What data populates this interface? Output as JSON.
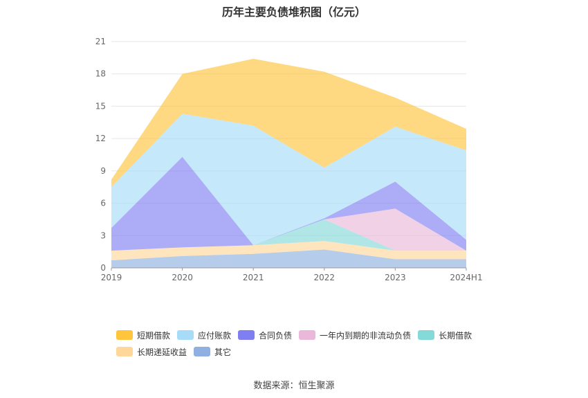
{
  "chart_data": {
    "type": "area",
    "stacked": true,
    "title": "历年主要负债堆积图（亿元）",
    "categories": [
      "2019",
      "2020",
      "2021",
      "2022",
      "2023",
      "2024H1"
    ],
    "ylim": [
      0,
      21
    ],
    "yticks": [
      0,
      3,
      6,
      9,
      12,
      15,
      18,
      21
    ],
    "grid": true,
    "legend_position": "bottom",
    "series": [
      {
        "name": "其它",
        "color": "#8fb0e0",
        "values": [
          0.7,
          1.1,
          1.3,
          1.7,
          0.8,
          0.8
        ]
      },
      {
        "name": "长期递延收益",
        "color": "#ffd79b",
        "values": [
          0.9,
          0.8,
          0.8,
          0.8,
          0.8,
          0.8
        ]
      },
      {
        "name": "长期借款",
        "color": "#85d9d9",
        "values": [
          0.0,
          0.0,
          0.0,
          2.0,
          0.0,
          0.0
        ]
      },
      {
        "name": "一年内到期的非流动负债",
        "color": "#eab8d8",
        "values": [
          0.0,
          0.0,
          0.0,
          0.0,
          3.9,
          0.0
        ]
      },
      {
        "name": "合同负债",
        "color": "#7f7ff2",
        "values": [
          2.1,
          8.4,
          0.0,
          0.1,
          2.5,
          1.0
        ]
      },
      {
        "name": "应付账款",
        "color": "#a6dcf7",
        "values": [
          3.8,
          4.0,
          11.1,
          4.7,
          5.1,
          8.3
        ]
      },
      {
        "name": "短期借款",
        "color": "#ffc53d",
        "values": [
          0.7,
          3.7,
          6.2,
          8.9,
          2.7,
          2.0
        ]
      }
    ],
    "legend_order": [
      "短期借款",
      "应付账款",
      "合同负债",
      "一年内到期的非流动负债",
      "长期借款",
      "长期递延收益",
      "其它"
    ]
  },
  "source_note": "数据来源：恒生聚源"
}
